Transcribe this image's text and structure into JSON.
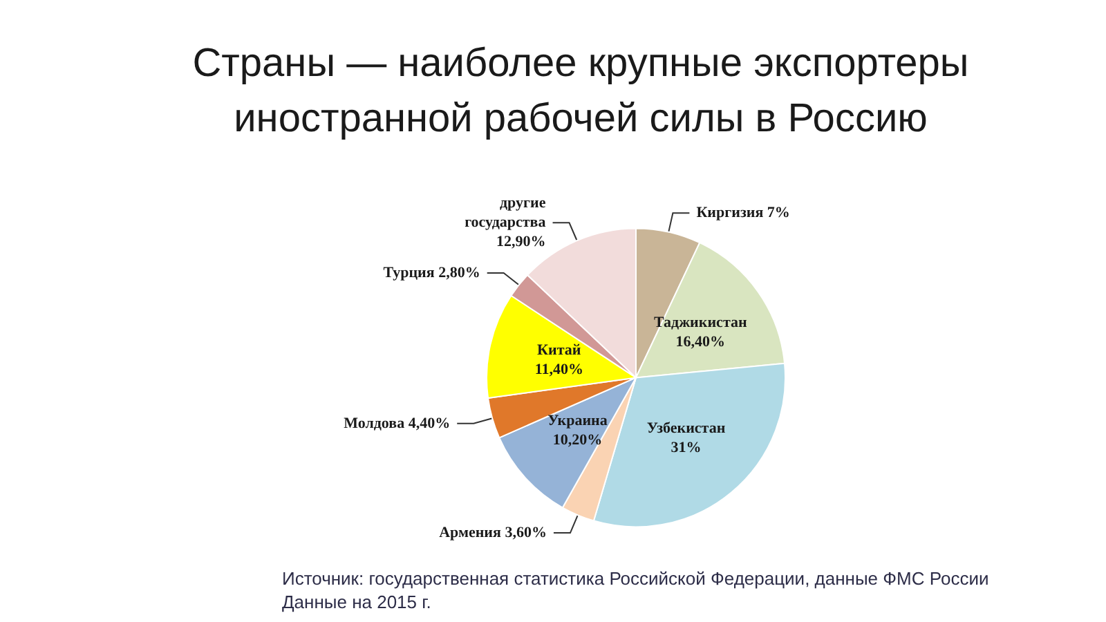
{
  "chart_data": {
    "type": "pie",
    "title": "Страны — наиболее крупные экспортеры иностранной рабочей силы в Россию",
    "categories": [
      "Киргизия",
      "Таджикистан",
      "Узбекистан",
      "Армения",
      "Украина",
      "Молдова",
      "Китай",
      "Турция",
      "другие государства"
    ],
    "values": [
      7,
      16.4,
      31,
      3.6,
      10.2,
      4.4,
      11.4,
      2.8,
      12.9
    ],
    "value_labels": [
      "7%",
      "16,40%",
      "31%",
      "3,60%",
      "10,20%",
      "4,40%",
      "11,40%",
      "2,80%",
      "12,90%"
    ],
    "colors": [
      "#c9b597",
      "#d9e5c0",
      "#b0dae6",
      "#fad3b3",
      "#95b3d7",
      "#e0782a",
      "#ffff00",
      "#d19896",
      "#f2dcdb"
    ],
    "annotations": [
      "Источник: государственная статистика Российской Федерации, данные ФМС России",
      "Данные на 2015 г."
    ]
  }
}
